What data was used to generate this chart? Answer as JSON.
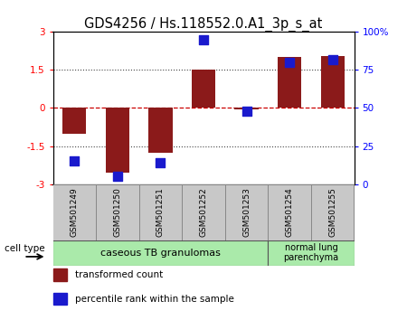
{
  "title": "GDS4256 / Hs.118552.0.A1_3p_s_at",
  "samples": [
    "GSM501249",
    "GSM501250",
    "GSM501251",
    "GSM501252",
    "GSM501253",
    "GSM501254",
    "GSM501255"
  ],
  "transformed_counts": [
    -1.0,
    -2.55,
    -1.75,
    1.5,
    -0.07,
    2.0,
    2.05
  ],
  "percentile_ranks": [
    15,
    5,
    14,
    95,
    48,
    80,
    82
  ],
  "ylim_left": [
    -3,
    3
  ],
  "ylim_right": [
    0,
    100
  ],
  "left_yticks": [
    -3,
    -1.5,
    0,
    1.5,
    3
  ],
  "right_yticks": [
    0,
    25,
    50,
    75,
    100
  ],
  "right_yticklabels": [
    "0",
    "25",
    "50",
    "75",
    "100%"
  ],
  "bar_color": "#8B1A1A",
  "square_color": "#1a1acd",
  "zero_line_color": "#CC0000",
  "dotted_line_color": "#444444",
  "group1_label": "caseous TB granulomas",
  "group1_indices": [
    0,
    1,
    2,
    3,
    4
  ],
  "group2_label": "normal lung\nparenchyma",
  "group2_indices": [
    5,
    6
  ],
  "group1_color": "#aaeaaa",
  "group2_color": "#aaeaaa",
  "tick_box_color": "#c8c8c8",
  "cell_type_label": "cell type",
  "legend1_label": "transformed count",
  "legend2_label": "percentile rank within the sample",
  "bar_width": 0.55,
  "title_fontsize": 10.5,
  "tick_fontsize": 7.5,
  "label_fontsize": 8
}
